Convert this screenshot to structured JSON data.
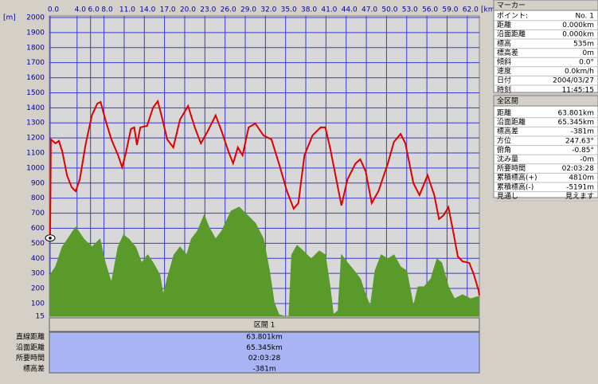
{
  "chart_data": {
    "type": "line",
    "y_unit_label": "[m]",
    "x_unit_label": "[km]",
    "xlim": [
      0,
      63.801
    ],
    "ylim": [
      15,
      2000
    ],
    "grid": true,
    "xticks": [
      {
        "value": 0,
        "label": "0.0"
      },
      {
        "value": 4,
        "label": "4.0"
      },
      {
        "value": 6,
        "label": "6.0"
      },
      {
        "value": 8,
        "label": "8.0"
      },
      {
        "value": 11,
        "label": "11.0"
      },
      {
        "value": 14,
        "label": "14.0"
      },
      {
        "value": 17,
        "label": "17.0"
      },
      {
        "value": 20,
        "label": "20.0"
      },
      {
        "value": 23,
        "label": "23.0"
      },
      {
        "value": 26,
        "label": "26.0"
      },
      {
        "value": 29,
        "label": "29.0"
      },
      {
        "value": 32,
        "label": "32.0"
      },
      {
        "value": 35,
        "label": "35.0"
      },
      {
        "value": 38,
        "label": "38.0"
      },
      {
        "value": 41,
        "label": "41.0"
      },
      {
        "value": 44,
        "label": "44.0"
      },
      {
        "value": 47,
        "label": "47.0"
      },
      {
        "value": 50,
        "label": "50.0"
      },
      {
        "value": 53,
        "label": "53.0"
      },
      {
        "value": 56,
        "label": "56.0"
      },
      {
        "value": 59,
        "label": "59.0"
      },
      {
        "value": 62,
        "label": "62.0"
      }
    ],
    "yticks": [
      15,
      100,
      200,
      300,
      400,
      500,
      600,
      700,
      800,
      900,
      1000,
      1100,
      1200,
      1300,
      1400,
      1500,
      1600,
      1700,
      1800,
      1900,
      2000
    ],
    "series": [
      {
        "fill": "area",
        "color": "#5a9a2a",
        "x": [
          0,
          0.8,
          1.8,
          2.6,
          3.8,
          5.0,
          6.2,
          7.4,
          8.2,
          9.1,
          10.1,
          10.9,
          11.7,
          12.7,
          13.6,
          14.5,
          15.3,
          16.3,
          16.8,
          17.4,
          18.4,
          19.3,
          20.3,
          21.0,
          21.9,
          22.9,
          23.6,
          24.6,
          25.5,
          26.9,
          28.1,
          29.3,
          30.5,
          31.7,
          32.6,
          33.3,
          34.0,
          34.8,
          35.5,
          35.9,
          36.7,
          37.6,
          38.8,
          40.0,
          40.9,
          41.6,
          42.1,
          42.8,
          43.3,
          44.2,
          45.2,
          46.1,
          46.9,
          47.6,
          48.3,
          49.2,
          50.2,
          51.1,
          52.1,
          53.0,
          54.0,
          54.7,
          55.6,
          56.6,
          57.5,
          58.2,
          59.2,
          60.1,
          61.3,
          62.5,
          63.7
        ],
        "values": [
          290,
          343,
          475,
          528,
          608,
          528,
          475,
          528,
          370,
          237,
          475,
          555,
          528,
          475,
          370,
          423,
          370,
          290,
          158,
          264,
          423,
          475,
          423,
          528,
          581,
          687,
          608,
          528,
          581,
          714,
          740,
          687,
          634,
          528,
          317,
          105,
          26,
          15,
          15,
          423,
          486,
          449,
          396,
          449,
          423,
          211,
          26,
          52,
          423,
          370,
          317,
          264,
          158,
          79,
          317,
          423,
          396,
          423,
          343,
          317,
          79,
          211,
          211,
          264,
          396,
          370,
          211,
          131,
          158,
          131,
          147
        ]
      },
      {
        "fill": "line",
        "color": "#e00000",
        "x": [
          0,
          0.1,
          0.8,
          1.3,
          1.8,
          2.5,
          3.2,
          3.8,
          4.4,
          5.3,
          6.2,
          7.0,
          7.5,
          8.2,
          9.1,
          10.1,
          10.7,
          11.3,
          12.0,
          12.5,
          12.9,
          13.4,
          14.4,
          15.3,
          16.0,
          16.7,
          17.4,
          18.3,
          19.3,
          20.5,
          21.5,
          22.4,
          23.4,
          24.6,
          25.5,
          26.5,
          27.2,
          27.9,
          28.6,
          29.5,
          30.5,
          31.7,
          32.9,
          34.0,
          35.2,
          36.2,
          36.9,
          37.8,
          39.0,
          40.2,
          40.9,
          41.6,
          42.3,
          43.3,
          44.2,
          45.4,
          46.1,
          46.9,
          47.8,
          48.8,
          50.2,
          51.1,
          52.1,
          52.8,
          54.0,
          54.9,
          56.1,
          57.1,
          57.8,
          58.5,
          59.2,
          59.9,
          60.6,
          61.3,
          62.3,
          63.0,
          63.7,
          63.8
        ],
        "values": [
          535,
          1190,
          1164,
          1180,
          1110,
          952,
          872,
          846,
          925,
          1164,
          1350,
          1428,
          1439,
          1322,
          1190,
          1084,
          1005,
          1110,
          1259,
          1270,
          1153,
          1270,
          1280,
          1402,
          1444,
          1322,
          1190,
          1137,
          1322,
          1412,
          1270,
          1164,
          1243,
          1350,
          1243,
          1110,
          1031,
          1137,
          1084,
          1270,
          1296,
          1217,
          1190,
          1031,
          846,
          730,
          767,
          1084,
          1217,
          1270,
          1270,
          1137,
          978,
          751,
          925,
          1031,
          1058,
          978,
          767,
          846,
          1031,
          1174,
          1227,
          1164,
          899,
          820,
          952,
          820,
          661,
          687,
          740,
          581,
          412,
          380,
          370,
          290,
          184,
          154
        ]
      }
    ]
  },
  "marker_panel": {
    "title": "マーカー",
    "rows": [
      [
        "ポイント:",
        "No. 1"
      ],
      [
        "距離",
        "0.000km"
      ],
      [
        "沿面距離",
        "0.000km"
      ],
      [
        "標高",
        "535m"
      ],
      [
        "標高差",
        "0m"
      ],
      [
        "傾斜",
        "0.0°"
      ],
      [
        "速度",
        "0.0km/h"
      ],
      [
        "日付",
        "2004/03/27"
      ],
      [
        "時刻",
        "11:45:15"
      ]
    ]
  },
  "total_panel": {
    "title": "全区間",
    "rows": [
      [
        "距離",
        "63.801km"
      ],
      [
        "沿面距離",
        "65.345km"
      ],
      [
        "標高差",
        "-381m"
      ],
      [
        "方位",
        "247.63°"
      ],
      [
        "俯角",
        "-0.85°"
      ],
      [
        "沈み量",
        "-0m"
      ],
      [
        "所要時間",
        "02:03:28"
      ],
      [
        "累積標高(+)",
        "4810m"
      ],
      [
        "累積標高(-)",
        "-5191m"
      ],
      [
        "見通し",
        "見えます"
      ]
    ]
  },
  "section_table": {
    "header": "区間 1",
    "rows": [
      [
        "直線距離",
        "63.801km"
      ],
      [
        "沿面距離",
        "65.345km"
      ],
      [
        "所要時間",
        "02:03:28"
      ],
      [
        "標高差",
        "-381m"
      ]
    ]
  }
}
